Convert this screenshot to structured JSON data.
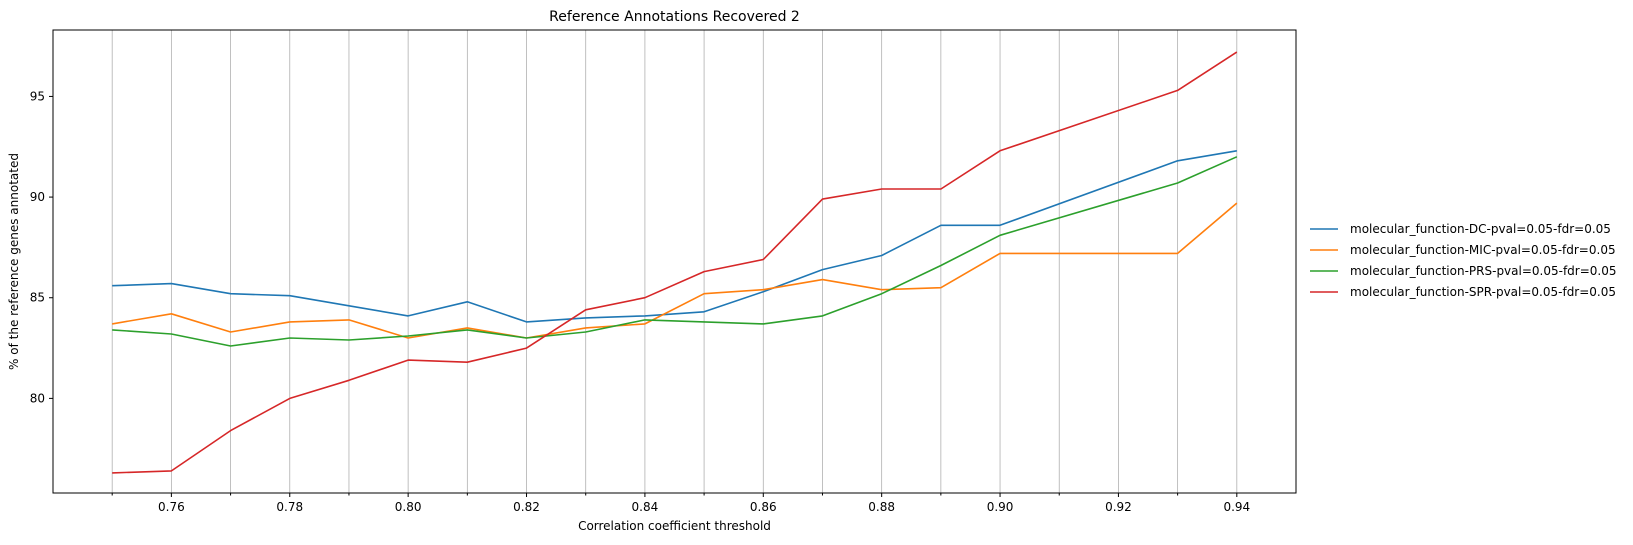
{
  "chart_data": {
    "type": "line",
    "title": "Reference Annotations Recovered 2",
    "xlabel": "Correlation coefficient threshold",
    "ylabel": "% of the reference genes annotated",
    "x": [
      0.75,
      0.76,
      0.77,
      0.78,
      0.79,
      0.8,
      0.81,
      0.82,
      0.83,
      0.84,
      0.85,
      0.86,
      0.87,
      0.88,
      0.89,
      0.9,
      0.93,
      0.94
    ],
    "xticks": [
      0.76,
      0.78,
      0.8,
      0.82,
      0.84,
      0.86,
      0.88,
      0.9,
      0.92,
      0.94
    ],
    "xtick_labels": [
      "0.76",
      "0.78",
      "0.80",
      "0.82",
      "0.84",
      "0.86",
      "0.88",
      "0.90",
      "0.92",
      "0.94"
    ],
    "minor_xticks": [
      0.75,
      0.77,
      0.79,
      0.81,
      0.83,
      0.85,
      0.87,
      0.89,
      0.91,
      0.93
    ],
    "yticks": [
      80,
      85,
      90,
      95
    ],
    "ytick_labels": [
      "80",
      "85",
      "90",
      "95"
    ],
    "xlim": [
      0.74,
      0.95
    ],
    "ylim": [
      75.3,
      98.3
    ],
    "grid": "vertical",
    "legend_position": "right-outside",
    "series": [
      {
        "name": "molecular_function-DC-pval=0.05-fdr=0.05",
        "color": "#1f77b4",
        "values": [
          85.6,
          85.7,
          85.2,
          85.1,
          84.6,
          84.1,
          84.8,
          83.8,
          84.0,
          84.1,
          84.3,
          85.3,
          86.4,
          87.1,
          88.6,
          88.6,
          91.8,
          92.3
        ]
      },
      {
        "name": "molecular_function-MIC-pval=0.05-fdr=0.05",
        "color": "#ff7f0e",
        "values": [
          83.7,
          84.2,
          83.3,
          83.8,
          83.9,
          83.0,
          83.5,
          83.0,
          83.5,
          83.7,
          85.2,
          85.4,
          85.9,
          85.4,
          85.5,
          87.2,
          87.2,
          89.7
        ]
      },
      {
        "name": "molecular_function-PRS-pval=0.05-fdr=0.05",
        "color": "#2ca02c",
        "values": [
          83.4,
          83.2,
          82.6,
          83.0,
          82.9,
          83.1,
          83.4,
          83.0,
          83.3,
          83.9,
          83.8,
          83.7,
          84.1,
          85.2,
          86.6,
          88.1,
          90.7,
          92.0
        ]
      },
      {
        "name": "molecular_function-SPR-pval=0.05-fdr=0.05",
        "color": "#d62728",
        "values": [
          76.3,
          76.4,
          78.4,
          80.0,
          80.9,
          81.9,
          81.8,
          82.5,
          84.4,
          85.0,
          86.3,
          86.9,
          89.9,
          90.4,
          90.4,
          92.3,
          95.3,
          97.2
        ]
      }
    ]
  }
}
